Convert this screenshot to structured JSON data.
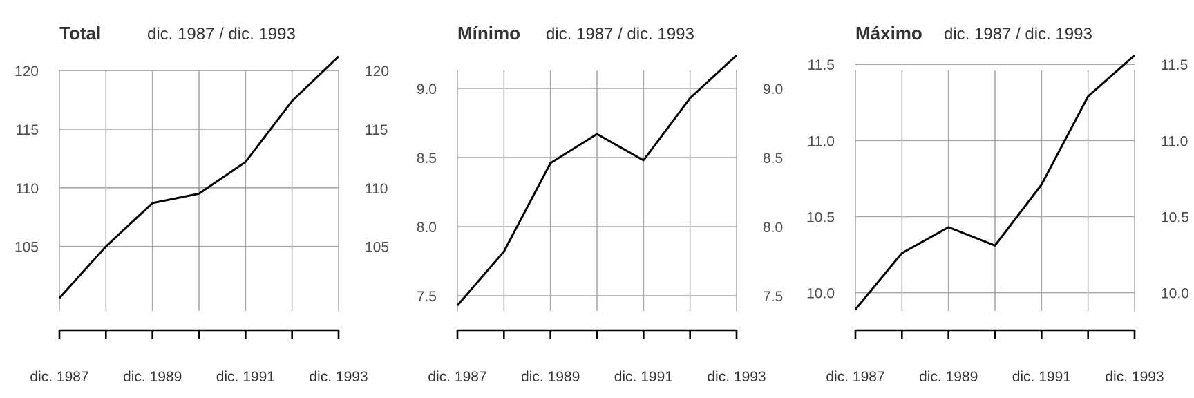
{
  "chart_data": [
    {
      "type": "line",
      "title": "Total",
      "subtitle": "dic. 1987 / dic. 1993",
      "x": [
        1987,
        1988,
        1989,
        1990,
        1991,
        1992,
        1993
      ],
      "x_tick_labels": [
        "dic. 1987",
        "dic. 1989",
        "dic. 1991",
        "dic. 1993"
      ],
      "series": [
        {
          "values": [
            100.6,
            105.0,
            108.7,
            109.5,
            112.2,
            117.4,
            121.2
          ]
        }
      ],
      "y_ticks": [
        105,
        110,
        115,
        120
      ],
      "y_tick_labels": [
        "105",
        "110",
        "115",
        "120"
      ],
      "ylim": [
        99.5,
        121.3
      ],
      "grid": true,
      "y_axis_right": true
    },
    {
      "type": "line",
      "title": "Mínimo",
      "subtitle": "dic. 1987 / dic. 1993",
      "x": [
        1987,
        1988,
        1989,
        1990,
        1991,
        1992,
        1993
      ],
      "x_tick_labels": [
        "dic. 1987",
        "dic. 1989",
        "dic. 1991",
        "dic. 1993"
      ],
      "series": [
        {
          "values": [
            7.43,
            7.82,
            8.46,
            8.67,
            8.48,
            8.93,
            9.24
          ]
        }
      ],
      "y_ticks": [
        7.5,
        8.0,
        8.5,
        9.0
      ],
      "y_tick_labels": [
        "7.5",
        "8.0",
        "8.5",
        "9.0"
      ],
      "ylim": [
        7.39,
        9.24
      ],
      "grid": true,
      "y_axis_right": true
    },
    {
      "type": "line",
      "title": "Máximo",
      "subtitle": "dic. 1987 / dic. 1993",
      "x": [
        1987,
        1988,
        1989,
        1990,
        1991,
        1992,
        1993
      ],
      "x_tick_labels": [
        "dic. 1987",
        "dic. 1989",
        "dic. 1991",
        "dic. 1993"
      ],
      "series": [
        {
          "values": [
            9.89,
            10.26,
            10.43,
            10.31,
            10.71,
            11.29,
            11.56
          ]
        }
      ],
      "y_ticks": [
        10.0,
        10.5,
        11.0,
        11.5
      ],
      "y_tick_labels": [
        "10.0",
        "10.5",
        "11.0",
        "11.5"
      ],
      "ylim": [
        9.88,
        11.56
      ],
      "grid": true,
      "y_axis_right": true
    }
  ]
}
